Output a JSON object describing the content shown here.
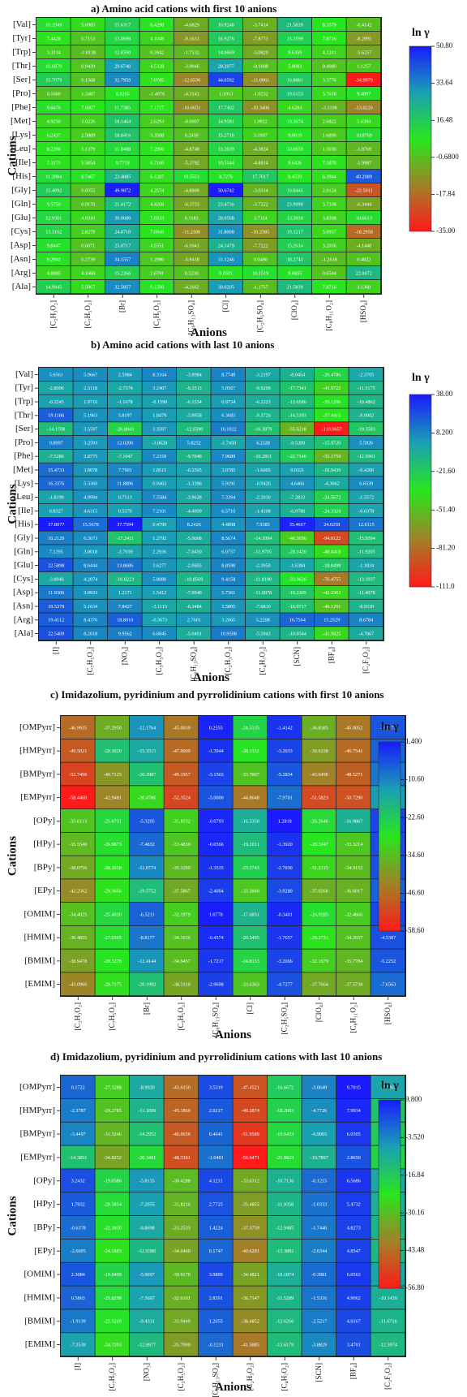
{
  "chart_data": [
    {
      "type": "heatmap",
      "title": "a)   Amino acid cations with first 10 anions",
      "ylabel": "Cations",
      "xlabel": "Anions",
      "colorbar_title": "ln γ",
      "colorbar_ticks": [
        "50.80",
        "33.64",
        "16.48",
        "-0.6800",
        "-17.84",
        "-35.00"
      ],
      "vmin": -35.0,
      "vmax": 50.8,
      "rows": [
        "[Val]",
        "[Tyr]",
        "[Trp]",
        "[Thr]",
        "[Ser]",
        "[Pro]",
        "[Phe]",
        "[Met]",
        "[Lys]",
        "[Leu]",
        "[Ile]",
        "[His]",
        "[Gly]",
        "[Gln]",
        "[Glu]",
        "[Cys]",
        "[Asp]",
        "[Asn]",
        "[Arg]",
        "[Ala]"
      ],
      "columns": [
        "[C₂H₃O₂]",
        "[C₇H₅O₂]",
        "[Br]",
        "[C₃H₅O₃]",
        "[C₆H₁₃SO₄]",
        "[Cl]",
        "[C₂H₅SO₄]",
        "[ClO₄]",
        "[C₈H₁₁O₂]",
        "[HSO₄]"
      ],
      "values": [
        [
          10.1949,
          5.6985,
          15.6317,
          8.4298,
          -4.6829,
          16.9248,
          -3.7414,
          21.5839,
          8.3579,
          -0.4142
        ],
        [
          7.4428,
          0.7153,
          13.0698,
          4.1049,
          -9.1613,
          16.9276,
          -7.8773,
          15.3599,
          7.8716,
          -8.2895
        ],
        [
          3.3314,
          -1.0138,
          12.059,
          0.5942,
          -1.7132,
          14.0669,
          -5.082,
          9.6359,
          4.1241,
          -5.6257
        ],
        [
          10.687,
          0.9439,
          29.674,
          4.5328,
          -3.0046,
          28.2077,
          -0.1608,
          5.8083,
          0.408,
          1.1257
        ],
        [
          15.7079,
          0.1568,
          32.7959,
          7.0785,
          -12.6536,
          44.0592,
          -11.0961,
          16.8861,
          3.3776,
          -34.9979
        ],
        [
          0.16,
          1.3487,
          8.9265,
          -1.4976,
          -4.3143,
          1.1913,
          -1.0232,
          19.6153,
          5.7618,
          9.4897
        ],
        [
          9.6676,
          7.6607,
          11.7385,
          7.1717,
          -10.6651,
          17.7402,
          -10.3406,
          4.6284,
          -3.3198,
          -13.0226
        ],
        [
          4.925,
          3.0226,
          18.1464,
          2.6293,
          -0.0007,
          14.9581,
          1.9922,
          10.3674,
          2.6822,
          5.6394
        ],
        [
          6.2437,
          2.5809,
          18.8416,
          3.3588,
          0.245,
          15.2719,
          3.1997,
          9.0019,
          1.689,
          10.8769
        ],
        [
          8.2396,
          5.1379,
          11.8488,
          7.2906,
          -4.8748,
          13.2039,
          -4.3824,
          10.6659,
          1.503,
          -1.8769
        ],
        [
          7.1171,
          5.5854,
          9.7719,
          6.716,
          -5.3792,
          10.5144,
          -4.8814,
          9.6426,
          7.187,
          -1.9987
        ],
        [
          11.3984,
          8.7467,
          23.4885,
          6.1287,
          10.5551,
          8.7276,
          17.7617,
          8.4539,
          6.3944,
          40.2089
        ],
        [
          15.4092,
          0.0555,
          49.9872,
          4.2574,
          -4.8009,
          50.6742,
          -3.0314,
          16.0446,
          2.0124,
          -22.5911
        ],
        [
          9.575,
          0.017,
          21.4172,
          4.4208,
          -6.3733,
          23.4736,
          -3.7222,
          23.999,
          3.7338,
          -6.3444
        ],
        [
          12.9301,
          4.9316,
          30.068,
          7.0333,
          0.1183,
          28.0568,
          3.7114,
          13.303,
          3.8508,
          10.6613
        ],
        [
          13.3162,
          2.8279,
          24.871,
          7.6949,
          -11.2186,
          31.8008,
          -10.2385,
          19.3217,
          5.0957,
          -18.2958
        ],
        [
          9.8447,
          0.6071,
          25.0717,
          4.5551,
          -6.1041,
          24.1479,
          -7.7222,
          15.2614,
          3.2036,
          -4.144
        ],
        [
          9.2902,
          0.2739,
          34.1557,
          1.2986,
          -5.9418,
          31.1246,
          0.048,
          18.2741,
          -1.2618,
          0.4822
        ],
        [
          4.8885,
          4.1684,
          15.2366,
          2.6791,
          0.323,
          9.0501,
          10.1519,
          9.6855,
          0.6544,
          22.0472
        ],
        [
          14.9945,
          5.5007,
          32.5857,
          9.159,
          -4.2662,
          30.0205,
          -1.1757,
          21.5839,
          7.8716,
          3.136
        ]
      ]
    },
    {
      "type": "heatmap",
      "title": "b)   Amino acid cations with last 10 anions",
      "ylabel": "Cations",
      "xlabel": "Anions",
      "colorbar_title": "ln γ",
      "colorbar_ticks": [
        "38.00",
        "8.200",
        "-21.60",
        "-51.40",
        "-81.20",
        "-111.0"
      ],
      "vmin": -111.0,
      "vmax": 38.0,
      "rows": [
        "[Val]",
        "[Tyr]",
        "[Trp]",
        "[Thr]",
        "[Ser]",
        "[Pro]",
        "[Phe]",
        "[Met]",
        "[Lys]",
        "[Leu]",
        "[Ile]",
        "[His]",
        "[Gly]",
        "[Gln]",
        "[Glu]",
        "[Cys]",
        "[Asp]",
        "[Asn]",
        "[Arg]",
        "[Ala]"
      ],
      "columns": [
        "[I]",
        "[C₇H₅O₂]",
        "[NO₃]",
        "[C₃H₅O₂]",
        "[C₆H₁₃SO₄]",
        "[C₂H₃O₂]",
        "[C₄H₇O₂]",
        "[SCN]",
        "[BF₄]",
        "[C₂F₃O₂]"
      ],
      "values": [
        [
          5.6561,
          5.9667,
          2.5984,
          8.3164,
          -3.9984,
          8.7749,
          -3.2197,
          -8.0454,
          -26.4786,
          -2.3705
        ],
        [
          -2.8006,
          2.5118,
          -2.7374,
          3.2407,
          -9.3513,
          5.0567,
          -9.9299,
          -17.7341,
          -43.9722,
          -11.5175
        ],
        [
          -0.2245,
          1.971,
          -1.1678,
          -0.159,
          -6.1534,
          0.9734,
          -6.2223,
          -13.6586,
          -35.1296,
          -10.4862
        ],
        [
          19.1186,
          5.1963,
          5.8197,
          1.8479,
          -3.9958,
          6.3683,
          -9.3726,
          -14.5193,
          -37.4415,
          -9.0002
        ],
        [
          -14.1708,
          3.5597,
          -26.8943,
          3.3597,
          -12.659,
          10.1022,
          -16.3079,
          -55.6218,
          -110.9657,
          -19.3503
        ],
        [
          9.8997,
          3.2593,
          12.02,
          -3.0628,
          5.8252,
          -1.745,
          4.2328,
          -9.5209,
          -15.972,
          5.5926
        ],
        [
          -7.5286,
          2.8775,
          -7.1047,
          7.2159,
          -9.7048,
          7.9689,
          -10.2811,
          -22.7146,
          -55.1759,
          -12.0961
        ],
        [
          15.4733,
          3.8078,
          7.7901,
          1.8515,
          -0.2505,
          3.0785,
          -1.6005,
          0.0321,
          -10.9439,
          -0.42
        ],
        [
          16.3376,
          5.336,
          11.8896,
          0.9463,
          -1.3396,
          5.9191,
          -0.9426,
          4.6466,
          -4.3062,
          6.6539
        ],
        [
          -1.8199,
          4.9994,
          0.7513,
          7.5584,
          -3.9628,
          7.3394,
          -2.203,
          -7.2833,
          -24.5672,
          -1.5572
        ],
        [
          0.8327,
          4.6315,
          0.537,
          7.2101,
          -4.4009,
          6.571,
          -1.4108,
          -6.9788,
          -24.3324,
          -0.6378
        ],
        [
          37.8077,
          15.5678,
          37.7594,
          0.4799,
          8.2426,
          4.4898,
          7.9385,
          35.4667,
          24.0258,
          12.6115
        ],
        [
          10.2129,
          6.3073,
          -17.2411,
          1.2792,
          -5.0068,
          8.5674,
          -14.1094,
          -46.3696,
          -94.0122,
          -15.9594
        ],
        [
          7.1295,
          3.0018,
          -1.7039,
          2.2936,
          -7.045,
          6.0757,
          -11.9705,
          -20.142,
          -40.0418,
          -11.9205
        ],
        [
          22.5898,
          8.6444,
          13.8686,
          3.6277,
          -2.0605,
          8.8598,
          -2.395,
          -1.6384,
          -18.8498,
          -1.1834
        ],
        [
          -3.8946,
          4.2074,
          -10.8223,
          5.808,
          -10.8569,
          9.4158,
          -11.819,
          -33.3626,
          -76.4755,
          -13.1937
        ],
        [
          11.9306,
          3.9933,
          1.2171,
          1.5412,
          -7.0948,
          5.7361,
          -11.0078,
          -19.2305,
          -42.2363,
          -11.4978
        ],
        [
          19.5378,
          5.1634,
          7.8427,
          -3.1115,
          -6.3484,
          3.5805,
          -7.681,
          -16.0717,
          -49.1291,
          -8.953
        ],
        [
          19.4112,
          8.4376,
          18.801,
          -0.3673,
          2.7601,
          3.2065,
          5.2208,
          16.7564,
          15.2529,
          8.6784
        ],
        [
          22.5409,
          8.2618,
          9.9562,
          6.6845,
          -5.0401,
          10.9508,
          -5.5943,
          -10.0544,
          -41.9825,
          -4.7867
        ]
      ]
    },
    {
      "type": "heatmap",
      "title": "c)   Imidazolium, pyridinium and pyrrolidinium cations with first 10 anions",
      "ylabel": "Cations",
      "xlabel": "Anions",
      "colorbar_title": "ln γ",
      "colorbar_ticks": [
        "1.400",
        "-10.60",
        "-22.60",
        "-34.60",
        "-46.60",
        "-58.60"
      ],
      "vmin": -58.6,
      "vmax": 1.4,
      "rows": [
        "[OMPyrr]",
        "[HMPyrr]",
        "[BMPyrr]",
        "[EMPyrr]",
        "[OPy]",
        "[HPy]",
        "[BPy]",
        "[EPy]",
        "[OMIM]",
        "[HMIM]",
        "[BMIM]",
        "[EMIM]"
      ],
      "columns": [
        "[C₂H₃O₂]",
        "[C₇H₅O₂]",
        "[Br]",
        "[C₃H₅O₂]",
        "[C₆H₁₃SO₄]",
        "[Cl]",
        "[C₂H₅SO₄]",
        "[ClO₄]",
        "[C₈H₁₁O₂]",
        "[HSO₄]"
      ],
      "values": [
        [
          -46.9935,
          -37.295,
          -12.1764,
          -45.0039,
          0.2555,
          -24.5135,
          -1.4142,
          -36.8385,
          -45.0052,
          -5.2173
        ],
        [
          -49.5021,
          -20.302,
          -15.3515,
          -47.0009,
          -1.3944,
          -28.1112,
          -3.2033,
          -39.6338,
          -46.7541,
          -6.7953
        ],
        [
          -52.7496,
          -40.7125,
          -20.3987,
          -49.1957,
          -3.1563,
          -33.7807,
          -5.2834,
          -43.649,
          -48.5271,
          -8.9787
        ],
        [
          -58.446,
          -42.9481,
          -30.4786,
          -52.3524,
          -5.0,
          -44.8648,
          -7.9701,
          -51.5823,
          -50.729,
          -13.401
        ],
        [
          -33.6113,
          -25.6751,
          -5.3205,
          -31.8332,
          -0.0793,
          -16.535,
          1.2818,
          -26.2646,
          -16.9867,
          -3.3556
        ],
        [
          -35.554,
          -26.9873,
          -7.4832,
          -33.4839,
          -0.0566,
          -19.2011,
          -1.392,
          -28.3147,
          -33.3214,
          -4.1352
        ],
        [
          -38.0756,
          -28.2658,
          -11.0774,
          -35.3299,
          -1.3535,
          -23.5743,
          -2.703,
          -31.2315,
          -34.9152,
          -4.897
        ],
        [
          -42.2562,
          -29.3666,
          -19.5752,
          -37.5867,
          -2.4004,
          -33.284,
          -3.928,
          -37.026,
          -36.6017,
          -6.453
        ],
        [
          -34.4025,
          -25.403,
          -6.5211,
          -32.1979,
          1.0778,
          -17.6851,
          -0.3401,
          -26.9285,
          -32.4666,
          -3.5725
        ],
        [
          -36.4855,
          -27.0365,
          -8.8177,
          -34.1656,
          -0.4574,
          -20.5495,
          -1.7657,
          -29.2731,
          -34.2657,
          -4.5387
        ],
        [
          -38.9478,
          -28.3278,
          -12.4144,
          -34.9457,
          -1.7217,
          -24.8133,
          -3.2066,
          -32.1679,
          -35.7784,
          -5.2252
        ],
        [
          -43.0966,
          -29.7175,
          -20.1992,
          -38.311,
          -2.9698,
          -33.6363,
          -4.7277,
          -37.7664,
          -37.5738,
          -7.6563
        ]
      ]
    },
    {
      "type": "heatmap",
      "title": "d)   Imidazolium, pyridinium and pyrrolidinium cations with last 10 anions",
      "ylabel": "Cations",
      "xlabel": "Anions",
      "colorbar_title": "ln γ",
      "colorbar_ticks": [
        "9.800",
        "-3.520",
        "-16.84",
        "-30.16",
        "-43.48",
        "-56.80"
      ],
      "vmin": -56.8,
      "vmax": 9.8,
      "rows": [
        "[OMPyrr]",
        "[HMPyrr]",
        "[BMPyrr]",
        "[EMPyrr]",
        "[OPy]",
        "[HPy]",
        "[BPy]",
        "[EPy]",
        "[OMIM]",
        "[HMIM]",
        "[BMIM]",
        "[EMIM]"
      ],
      "columns": [
        "[I]",
        "[C₇H₅O₂]",
        "[NO₃]",
        "[C₃H₅O₂]",
        "[C₆H₁₃SO₄]",
        "[C₂H₃O₂]",
        "[C₄H₇O₂]",
        "[SCN]",
        "[BF₄]",
        "[C₂F₃O₂]"
      ],
      "values": [
        [
          0.1722,
          -27.3288,
          -8.992,
          -43.615,
          3.5319,
          -47.4521,
          -16.6672,
          -3.0649,
          9.7015,
          -7.7465
        ],
        [
          -2.3787,
          -29.2785,
          -11.1899,
          -45.186,
          2.0217,
          -49.2874,
          -18.2003,
          -4.7726,
          7.9934,
          -14.7072
        ],
        [
          -3.4497,
          -31.5246,
          -14.2952,
          -46.6656,
          0.4641,
          -51.9589,
          -19.6433,
          -6.9065,
          6.0305,
          -16.6787
        ],
        [
          -14.3851,
          -34.8252,
          -20.3491,
          -48.3361,
          -1.0491,
          -56.6471,
          -21.0823,
          -10.7897,
          2.865,
          -18.7222
        ],
        [
          3.2432,
          -19.0586,
          -5.8135,
          -30.4288,
          4.1211,
          -33.6312,
          -10.7136,
          -0.1215,
          6.5686,
          -8.8901
        ],
        [
          1.7032,
          -20.5854,
          -7.2055,
          -31.8216,
          2.7725,
          -35.4855,
          -11.9358,
          -1.0333,
          5.4732,
          -10.3778
        ],
        [
          -0.6378,
          -22.183,
          -8.8698,
          -33.2533,
          1.4224,
          -37.5759,
          -12.9485,
          -1.744,
          4.8273,
          -11.6598
        ],
        [
          -2.6605,
          -24.1883,
          -12.038,
          -34.646,
          0.1747,
          -40.6281,
          -13.3882,
          -2.6344,
          4.8547,
          -12.4019
        ],
        [
          2.3084,
          -19.0499,
          -5.9697,
          -30.917,
          3.9809,
          -34.4821,
          -10.1874,
          -0.3981,
          6.0563,
          -8.4901
        ],
        [
          0.5863,
          -20.8298,
          -7.5697,
          -32.6101,
          2.8591,
          -36.7147,
          -11.5289,
          -1.5316,
          4.9062,
          -10.1439
        ],
        [
          -1.9139,
          -22.5249,
          -9.4331,
          -33.9449,
          1.2055,
          -38.4852,
          -12.6266,
          -2.5217,
          4.0167,
          -11.6716
        ],
        [
          -7.3539,
          -24.7203,
          -12.8977,
          -35.799,
          -0.1231,
          -41.5885,
          -13.6179,
          -3.8829,
          3.4701,
          -12.5974
        ]
      ]
    }
  ]
}
